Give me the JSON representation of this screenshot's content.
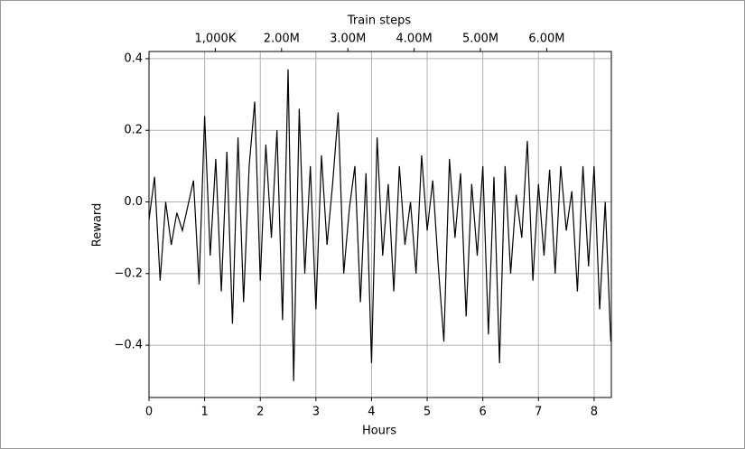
{
  "chart_data": {
    "type": "line",
    "xlabel": "Hours",
    "ylabel": "Reward",
    "x2label": "Train steps",
    "x": [
      0,
      0.1,
      0.2,
      0.3,
      0.4,
      0.5,
      0.6,
      0.7,
      0.8,
      0.9,
      1.0,
      1.1,
      1.2,
      1.3,
      1.4,
      1.5,
      1.6,
      1.7,
      1.8,
      1.9,
      2.0,
      2.1,
      2.2,
      2.3,
      2.4,
      2.5,
      2.6,
      2.7,
      2.8,
      2.9,
      3.0,
      3.1,
      3.2,
      3.3,
      3.4,
      3.5,
      3.6,
      3.7,
      3.8,
      3.9,
      4.0,
      4.1,
      4.2,
      4.3,
      4.4,
      4.5,
      4.6,
      4.7,
      4.8,
      4.9,
      5.0,
      5.1,
      5.2,
      5.3,
      5.4,
      5.5,
      5.6,
      5.7,
      5.8,
      5.9,
      6.0,
      6.1,
      6.2,
      6.3,
      6.4,
      6.5,
      6.6,
      6.7,
      6.8,
      6.9,
      7.0,
      7.1,
      7.2,
      7.3,
      7.4,
      7.5,
      7.6,
      7.7,
      7.8,
      7.9,
      8.0,
      8.1,
      8.2,
      8.3
    ],
    "series": [
      {
        "color": "#000000",
        "values": [
          -0.05,
          0.07,
          -0.22,
          0.0,
          -0.12,
          -0.03,
          -0.08,
          -0.01,
          0.06,
          -0.23,
          0.24,
          -0.15,
          0.12,
          -0.25,
          0.14,
          -0.34,
          0.18,
          -0.28,
          0.1,
          0.28,
          -0.22,
          0.16,
          -0.1,
          0.2,
          -0.33,
          0.37,
          -0.5,
          0.26,
          -0.2,
          0.1,
          -0.3,
          0.13,
          -0.12,
          0.05,
          0.25,
          -0.2,
          -0.02,
          0.1,
          -0.28,
          0.08,
          -0.45,
          0.18,
          -0.15,
          0.05,
          -0.25,
          0.1,
          -0.12,
          0.0,
          -0.2,
          0.13,
          -0.08,
          0.06,
          -0.18,
          -0.39,
          0.12,
          -0.1,
          0.08,
          -0.32,
          0.05,
          -0.15,
          0.1,
          -0.37,
          0.07,
          -0.45,
          0.1,
          -0.2,
          0.02,
          -0.1,
          0.17,
          -0.22,
          0.05,
          -0.15,
          0.09,
          -0.2,
          0.1,
          -0.08,
          0.03,
          -0.25,
          0.1,
          -0.18,
          0.1,
          -0.3,
          0.0,
          -0.39
        ]
      }
    ],
    "xlim": [
      0,
      8.31
    ],
    "xticks": [
      0,
      1,
      2,
      3,
      4,
      5,
      6,
      7,
      8
    ],
    "ylim": [
      -0.546,
      0.42
    ],
    "yticks": [
      {
        "value": -0.4,
        "label": "−0.4"
      },
      {
        "value": -0.2,
        "label": "−0.2"
      },
      {
        "value": 0,
        "label": "0.0"
      },
      {
        "value": 0.2,
        "label": "0.2"
      },
      {
        "value": 0.4,
        "label": "0.4"
      }
    ],
    "x2lim": [
      0,
      6975000
    ],
    "x2ticks": [
      {
        "value": 1000000,
        "label": "1,000K"
      },
      {
        "value": 2000000,
        "label": "2.00M"
      },
      {
        "value": 3000000,
        "label": "3.00M"
      },
      {
        "value": 4000000,
        "label": "4.00M"
      },
      {
        "value": 5000000,
        "label": "5.00M"
      },
      {
        "value": 6000000,
        "label": "6.00M"
      }
    ],
    "grid": true
  }
}
